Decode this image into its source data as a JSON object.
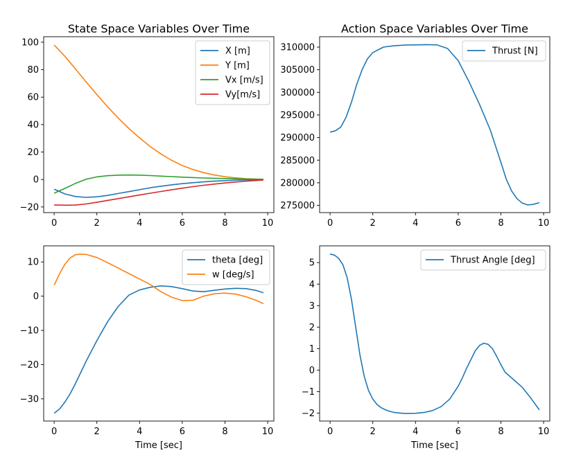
{
  "chart_data": [
    {
      "type": "line",
      "title": "State Space Variables Over Time",
      "xlabel": "",
      "ylabel": "",
      "xlim": [
        -0.49,
        10.29
      ],
      "ylim": [
        -24.1,
        104.0
      ],
      "xticks": [
        0,
        2,
        4,
        6,
        8,
        10
      ],
      "yticks": [
        -20,
        0,
        20,
        40,
        60,
        80,
        100
      ],
      "legend_position": "upper right",
      "series": [
        {
          "name": "X [m]",
          "color": "#1f77b4",
          "x": [
            0,
            0.5,
            1,
            1.5,
            2,
            2.5,
            3,
            3.5,
            4,
            4.5,
            5,
            5.5,
            6,
            6.5,
            7,
            7.5,
            8,
            8.5,
            9,
            9.5,
            9.8
          ],
          "y": [
            -7,
            -10.5,
            -12.4,
            -13.0,
            -12.6,
            -11.6,
            -10.2,
            -8.8,
            -7.4,
            -6.0,
            -4.9,
            -3.9,
            -3.0,
            -2.3,
            -1.7,
            -1.2,
            -0.8,
            -0.5,
            -0.3,
            -0.1,
            0
          ]
        },
        {
          "name": "Y [m]",
          "color": "#ff7f0e",
          "x": [
            0,
            0.5,
            1,
            1.5,
            2,
            2.5,
            3,
            3.5,
            4,
            4.5,
            5,
            5.5,
            6,
            6.5,
            7,
            7.5,
            8,
            8.5,
            9,
            9.5,
            9.8
          ],
          "y": [
            98,
            89.8,
            80.5,
            71.0,
            61.8,
            53.0,
            44.8,
            37.2,
            30.3,
            24.0,
            18.6,
            14.0,
            10.2,
            7.3,
            5.0,
            3.3,
            2.0,
            1.2,
            0.6,
            0.3,
            0.2
          ]
        },
        {
          "name": "Vx [m/s]",
          "color": "#2ca02c",
          "x": [
            0,
            0.5,
            1,
            1.5,
            2,
            2.5,
            3,
            3.5,
            4,
            4.5,
            5,
            5.5,
            6,
            6.5,
            7,
            7.5,
            8,
            8.5,
            9,
            9.5,
            9.8
          ],
          "y": [
            -10,
            -6.5,
            -2.8,
            0.2,
            1.9,
            2.8,
            3.2,
            3.3,
            3.2,
            2.9,
            2.5,
            2.1,
            1.7,
            1.4,
            1.1,
            0.9,
            0.7,
            0.5,
            0.4,
            0.2,
            0.1
          ]
        },
        {
          "name": "Vy[m/s]",
          "color": "#d62728",
          "x": [
            0,
            0.5,
            1,
            1.5,
            2,
            2.5,
            3,
            3.5,
            4,
            4.5,
            5,
            5.5,
            6,
            6.5,
            7,
            7.5,
            8,
            8.5,
            9,
            9.5,
            9.8
          ],
          "y": [
            -18.5,
            -18.7,
            -18.6,
            -17.8,
            -16.6,
            -15.2,
            -13.9,
            -12.6,
            -11.3,
            -10.0,
            -8.7,
            -7.5,
            -6.3,
            -5.2,
            -4.2,
            -3.3,
            -2.5,
            -1.8,
            -1.2,
            -0.7,
            -0.4
          ]
        }
      ]
    },
    {
      "type": "line",
      "title": "Action Space Variables Over Time",
      "xlabel": "",
      "ylabel": "",
      "xlim": [
        -0.49,
        10.29
      ],
      "ylim": [
        273400,
        312300
      ],
      "xticks": [
        0,
        2,
        4,
        6,
        8,
        10
      ],
      "yticks": [
        275000,
        280000,
        285000,
        290000,
        295000,
        300000,
        305000,
        310000
      ],
      "legend_position": "upper right",
      "series": [
        {
          "name": "Thrust [N]",
          "color": "#1f77b4",
          "x": [
            0,
            0.25,
            0.5,
            0.75,
            1,
            1.25,
            1.5,
            1.75,
            2,
            2.5,
            3,
            3.5,
            4,
            4.5,
            5,
            5.5,
            6,
            6.5,
            7,
            7.5,
            8,
            8.25,
            8.5,
            8.75,
            9,
            9.25,
            9.5,
            9.8
          ],
          "y": [
            291200,
            291500,
            292300,
            294500,
            297800,
            301800,
            305000,
            307400,
            308800,
            310000,
            310300,
            310450,
            310500,
            310550,
            310500,
            309700,
            307000,
            302400,
            297300,
            291700,
            284500,
            280800,
            278200,
            276500,
            275500,
            275100,
            275200,
            275600
          ]
        }
      ]
    },
    {
      "type": "line",
      "title": "",
      "xlabel": "Time [sec]",
      "ylabel": "",
      "xlim": [
        -0.49,
        10.29
      ],
      "ylim": [
        -36.5,
        14.7
      ],
      "xticks": [
        0,
        2,
        4,
        6,
        8,
        10
      ],
      "yticks": [
        -30,
        -20,
        -10,
        0,
        10
      ],
      "legend_position": "upper right",
      "series": [
        {
          "name": "theta [deg]",
          "color": "#1f77b4",
          "x": [
            0,
            0.25,
            0.5,
            0.75,
            1,
            1.5,
            2,
            2.5,
            3,
            3.5,
            4,
            4.5,
            5,
            5.5,
            6,
            6.5,
            7,
            7.5,
            8,
            8.5,
            9,
            9.5,
            9.8
          ],
          "y": [
            -34.2,
            -33.0,
            -31.0,
            -28.5,
            -25.5,
            -19.0,
            -13.0,
            -7.5,
            -3.0,
            0.3,
            1.8,
            2.6,
            3.0,
            2.8,
            2.2,
            1.5,
            1.3,
            1.7,
            2.1,
            2.3,
            2.2,
            1.6,
            1.0
          ]
        },
        {
          "name": "w [deg/s]",
          "color": "#ff7f0e",
          "x": [
            0,
            0.25,
            0.5,
            0.75,
            1,
            1.25,
            1.5,
            2,
            2.5,
            3,
            3.5,
            4,
            4.5,
            5,
            5.5,
            6,
            6.5,
            7,
            7.5,
            8,
            8.5,
            9,
            9.5,
            9.8
          ],
          "y": [
            3.2,
            6.5,
            9.3,
            11.2,
            12.1,
            12.3,
            12.2,
            11.3,
            9.8,
            8.2,
            6.6,
            5.0,
            3.4,
            1.3,
            -0.3,
            -1.3,
            -1.2,
            0.0,
            0.7,
            0.9,
            0.6,
            -0.2,
            -1.3,
            -2.2
          ]
        }
      ]
    },
    {
      "type": "line",
      "title": "",
      "xlabel": "Time [sec]",
      "ylabel": "",
      "xlim": [
        -0.49,
        10.29
      ],
      "ylim": [
        -2.37,
        5.78
      ],
      "xticks": [
        0,
        2,
        4,
        6,
        8,
        10
      ],
      "yticks": [
        -2,
        -1,
        0,
        1,
        2,
        3,
        4,
        5
      ],
      "legend_position": "upper right",
      "series": [
        {
          "name": "Thrust Angle [deg]",
          "color": "#1f77b4",
          "x": [
            0,
            0.2,
            0.4,
            0.6,
            0.8,
            1.0,
            1.2,
            1.4,
            1.6,
            1.8,
            2.0,
            2.2,
            2.4,
            2.6,
            2.8,
            3.0,
            3.4,
            3.6,
            4.0,
            4.4,
            4.8,
            5.2,
            5.6,
            6.0,
            6.2,
            6.4,
            6.6,
            6.8,
            7.0,
            7.2,
            7.4,
            7.6,
            7.8,
            8.0,
            8.2,
            8.6,
            9.0,
            9.4,
            9.8
          ],
          "y": [
            5.4,
            5.35,
            5.2,
            4.9,
            4.3,
            3.3,
            2.0,
            0.7,
            -0.3,
            -0.95,
            -1.35,
            -1.6,
            -1.75,
            -1.85,
            -1.92,
            -1.97,
            -2.01,
            -2.02,
            -2.01,
            -1.97,
            -1.88,
            -1.7,
            -1.35,
            -0.75,
            -0.35,
            0.1,
            0.5,
            0.9,
            1.15,
            1.25,
            1.2,
            1.0,
            0.65,
            0.25,
            -0.1,
            -0.45,
            -0.8,
            -1.3,
            -1.85
          ]
        }
      ]
    }
  ]
}
